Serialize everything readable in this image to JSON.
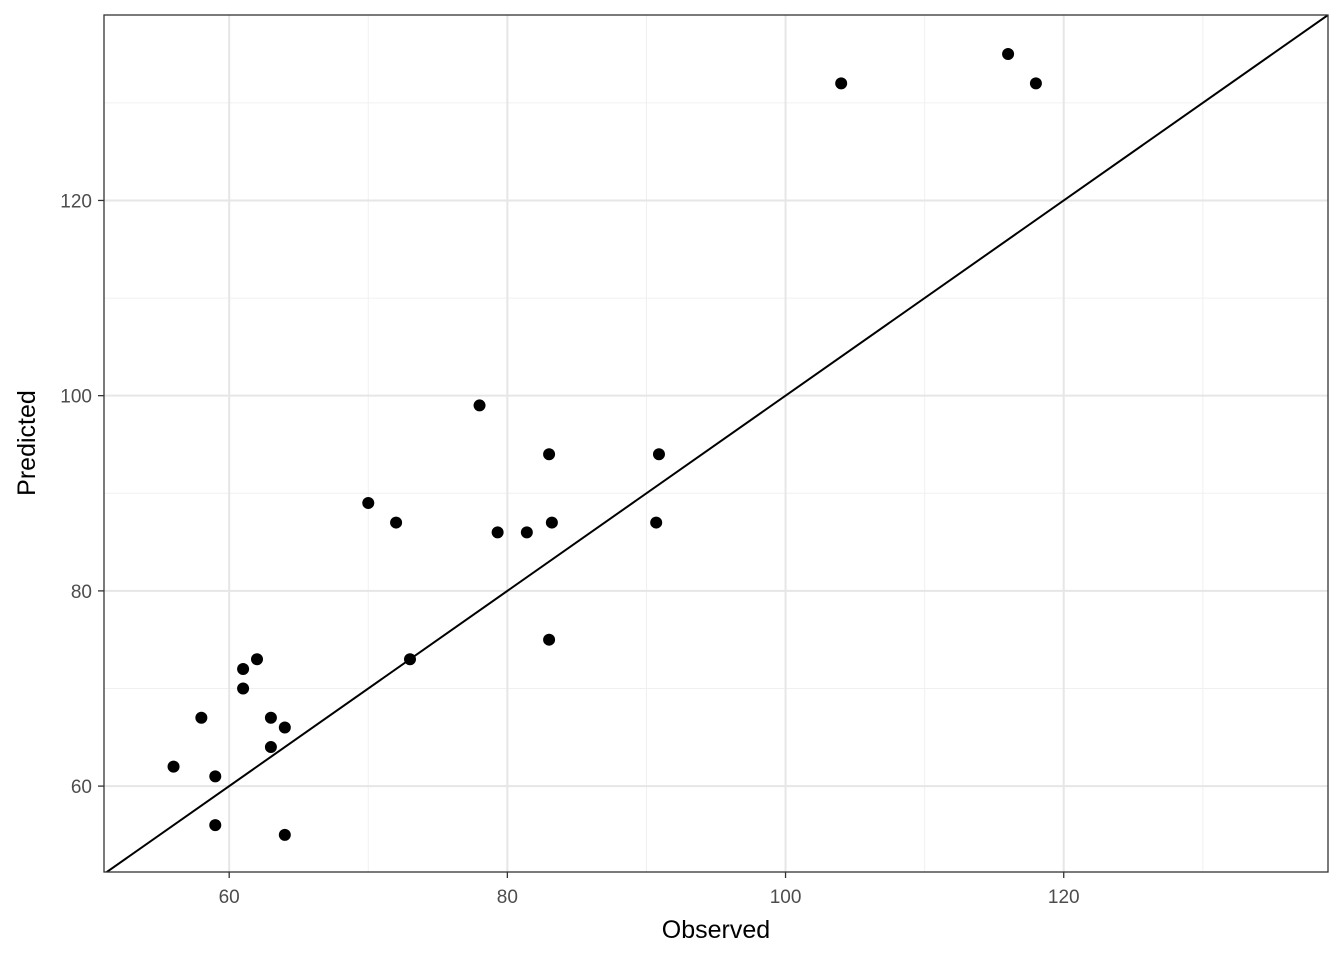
{
  "chart_data": {
    "type": "scatter",
    "x_label": "Observed",
    "y_label": "Predicted",
    "x": [
      56,
      58,
      59,
      59,
      61,
      61,
      62,
      63,
      63,
      64,
      64,
      70,
      72,
      73,
      78,
      79.3,
      81.4,
      83,
      83,
      83.2,
      90.7,
      90.9,
      104,
      116,
      118
    ],
    "series": [
      {
        "color": "#000000",
        "values": [
          62,
          67,
          61,
          56,
          72,
          70,
          73,
          67,
          64,
          66,
          55,
          89,
          87,
          73,
          99,
          86,
          86,
          94,
          75,
          87,
          87,
          94,
          132,
          135,
          132
        ]
      }
    ],
    "xlim": [
      51,
      139
    ],
    "ylim": [
      51.2,
      139
    ],
    "xticks": [
      60,
      80,
      100,
      120
    ],
    "yticks": [
      60,
      80,
      100,
      120
    ],
    "minor_xticks": [
      70,
      90,
      110,
      130
    ],
    "minor_yticks": [
      70,
      90,
      110,
      130
    ],
    "grid": true,
    "reference_line": {
      "slope": 1,
      "intercept": 0
    }
  }
}
